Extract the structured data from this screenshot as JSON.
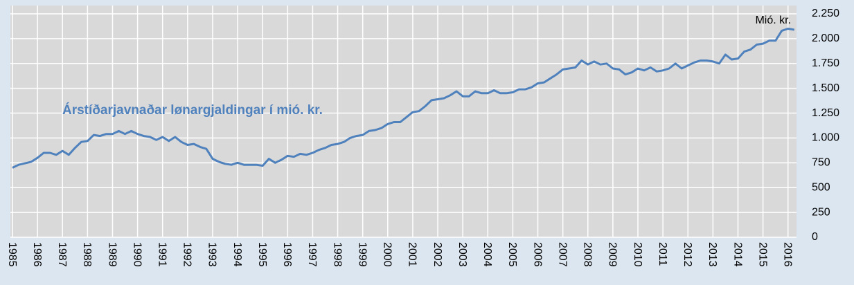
{
  "chart_data": {
    "type": "line",
    "title": "Árstíðarjavnaðar lønargjaldingar í mió. kr.",
    "y_axis_label": "Mió. kr.",
    "color": "#4f81bd",
    "grid": true,
    "categories": [
      "1985",
      null,
      null,
      null,
      "1986",
      null,
      null,
      null,
      "1987",
      null,
      null,
      null,
      "1988",
      null,
      null,
      null,
      "1989",
      null,
      null,
      null,
      "1990",
      null,
      null,
      null,
      "1991",
      null,
      null,
      null,
      "1992",
      null,
      null,
      null,
      "1993",
      null,
      null,
      null,
      "1994",
      null,
      null,
      null,
      "1995",
      null,
      null,
      null,
      "1996",
      null,
      null,
      null,
      "1997",
      null,
      null,
      null,
      "1998",
      null,
      null,
      null,
      "1999",
      null,
      null,
      null,
      "2000",
      null,
      null,
      null,
      "2001",
      null,
      null,
      null,
      "2002",
      null,
      null,
      null,
      "2003",
      null,
      null,
      null,
      "2004",
      null,
      null,
      null,
      "2005",
      null,
      null,
      null,
      "2006",
      null,
      null,
      null,
      "2007",
      null,
      null,
      null,
      "2008",
      null,
      null,
      null,
      "2009",
      null,
      null,
      null,
      "2010",
      null,
      null,
      null,
      "2011",
      null,
      null,
      null,
      "2012",
      null,
      null,
      null,
      "2013",
      null,
      null,
      null,
      "2014",
      null,
      null,
      null,
      "2015",
      null,
      null,
      null,
      "2016",
      null
    ],
    "values": [
      700,
      730,
      745,
      760,
      800,
      850,
      850,
      830,
      870,
      830,
      900,
      960,
      970,
      1030,
      1020,
      1040,
      1040,
      1070,
      1040,
      1070,
      1040,
      1020,
      1010,
      980,
      1010,
      970,
      1010,
      960,
      930,
      940,
      910,
      890,
      790,
      760,
      740,
      730,
      750,
      730,
      730,
      730,
      720,
      790,
      750,
      780,
      820,
      810,
      840,
      830,
      850,
      880,
      900,
      930,
      940,
      960,
      1000,
      1020,
      1030,
      1070,
      1080,
      1100,
      1140,
      1160,
      1160,
      1210,
      1260,
      1270,
      1320,
      1380,
      1390,
      1400,
      1430,
      1470,
      1420,
      1420,
      1470,
      1450,
      1450,
      1480,
      1450,
      1450,
      1460,
      1490,
      1490,
      1510,
      1550,
      1560,
      1600,
      1640,
      1690,
      1700,
      1710,
      1780,
      1740,
      1770,
      1740,
      1750,
      1700,
      1690,
      1640,
      1660,
      1700,
      1680,
      1710,
      1670,
      1680,
      1700,
      1750,
      1700,
      1730,
      1760,
      1780,
      1780,
      1770,
      1750,
      1840,
      1790,
      1800,
      1870,
      1890,
      1940,
      1950,
      1980,
      1980,
      2080,
      2100,
      2090
    ],
    "ylim": [
      0,
      2250
    ],
    "yticks": [
      0,
      250,
      500,
      750,
      {
        "value": 1000,
        "label": "1.000"
      },
      {
        "value": 1250,
        "label": "1.250"
      },
      {
        "value": 1500,
        "label": "1.500"
      },
      {
        "value": 1750,
        "label": "1.750"
      },
      {
        "value": 2000,
        "label": "2.000"
      },
      {
        "value": 2250,
        "label": "2.250"
      }
    ]
  }
}
